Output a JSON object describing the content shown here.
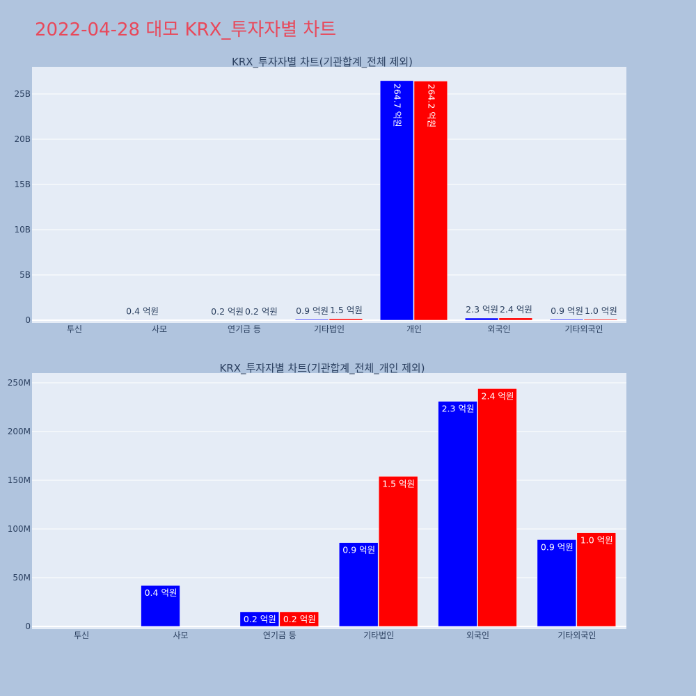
{
  "page": {
    "title": "2022-04-28 대모 KRX_투자자별 차트"
  },
  "colors": {
    "buy": "#0000ff",
    "sell": "#ff0000",
    "plot_bg": "#e5ecf6",
    "page_bg": "#b0c4de",
    "title": "#e8485a"
  },
  "chart_data": [
    {
      "type": "bar",
      "title": "KRX_투자자별 차트(기관합계_전체 제외)",
      "categories": [
        "투신",
        "사모",
        "연기금 등",
        "기타법인",
        "개인",
        "외국인",
        "기타외국인"
      ],
      "series": [
        {
          "values": [
            0,
            42000000,
            15000000,
            86000000,
            26470000000,
            231000000,
            89000000
          ],
          "labels": [
            "",
            "0.4 억원",
            "0.2 억원",
            "0.9 억원",
            "264.7 억원",
            "2.3 억원",
            "0.9 억원"
          ]
        },
        {
          "values": [
            0,
            0,
            15000000,
            154000000,
            26420000000,
            244000000,
            96000000
          ],
          "labels": [
            "",
            "",
            "0.2 억원",
            "1.5 억원",
            "264.2 억원",
            "2.4 억원",
            "1.0 억원"
          ]
        }
      ],
      "yticks": [
        0,
        5000000000,
        10000000000,
        15000000000,
        20000000000,
        25000000000
      ],
      "ytick_labels": [
        "0",
        "5B",
        "10B",
        "15B",
        "20B",
        "25B"
      ],
      "ylim": [
        0,
        28000000000
      ],
      "grid": true
    },
    {
      "type": "bar",
      "title": "KRX_투자자별 차트(기관합계_전체_개인 제외)",
      "categories": [
        "투신",
        "사모",
        "연기금 등",
        "기타법인",
        "외국인",
        "기타외국인"
      ],
      "series": [
        {
          "values": [
            0,
            42000000,
            15000000,
            86000000,
            231000000,
            89000000
          ],
          "labels": [
            "",
            "0.4 억원",
            "0.2 억원",
            "0.9 억원",
            "2.3 억원",
            "0.9 억원"
          ]
        },
        {
          "values": [
            0,
            0,
            15000000,
            154000000,
            244000000,
            96000000
          ],
          "labels": [
            "",
            "",
            "0.2 억원",
            "1.5 억원",
            "2.4 억원",
            "1.0 억원"
          ]
        }
      ],
      "yticks": [
        0,
        50000000,
        100000000,
        150000000,
        200000000,
        250000000
      ],
      "ytick_labels": [
        "0",
        "50M",
        "100M",
        "150M",
        "200M",
        "250M"
      ],
      "ylim": [
        0,
        260000000
      ],
      "grid": true
    }
  ]
}
